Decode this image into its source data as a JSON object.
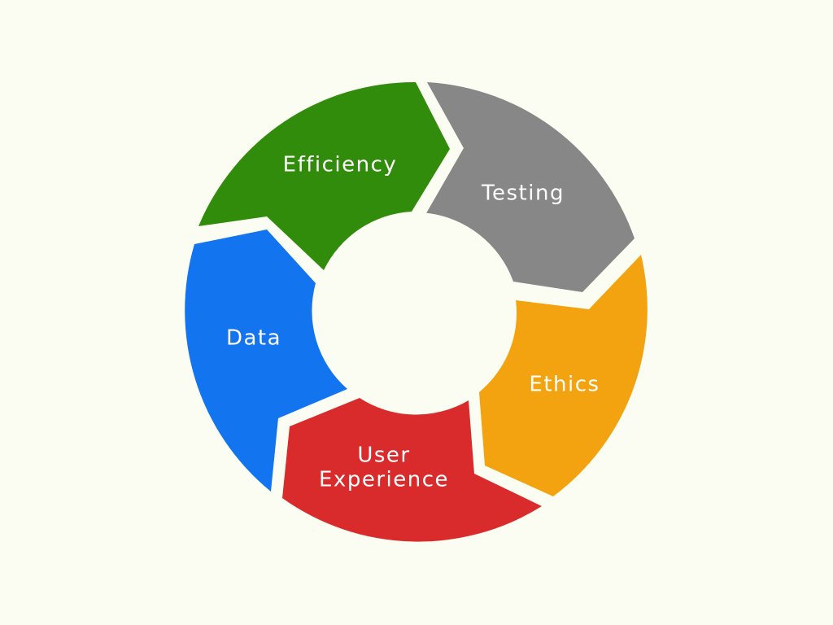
{
  "diagram": {
    "background": "#fbfdf2",
    "center_fill": "#fbfdf2",
    "segments": [
      {
        "id": "efficiency",
        "label": "Efficiency",
        "color": "#318c0b"
      },
      {
        "id": "testing",
        "label": "Testing",
        "color": "#878787"
      },
      {
        "id": "ethics",
        "label": "Ethics",
        "color": "#f2a30f"
      },
      {
        "id": "user-experience",
        "label_lines": [
          "User",
          "Experience"
        ],
        "color": "#d92b2b"
      },
      {
        "id": "data",
        "label": "Data",
        "color": "#1274ee"
      }
    ]
  }
}
